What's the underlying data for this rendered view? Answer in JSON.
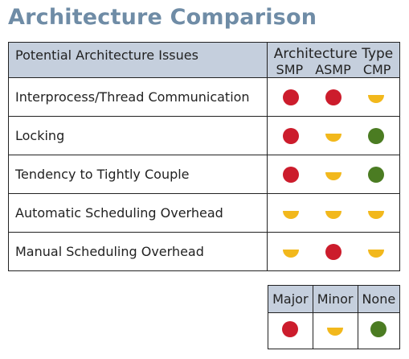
{
  "title": "Architecture Comparison",
  "colors": {
    "major": "#cc1c2c",
    "minor": "#f2b81c",
    "none": "#4b7c22",
    "header_bg": "#c5cfdd",
    "title": "#6f8ca6"
  },
  "table": {
    "issues_header": "Potential Architecture Issues",
    "type_header": "Architecture Type",
    "columns": [
      "SMP",
      "ASMP",
      "CMP"
    ],
    "rows": [
      {
        "issue": "Interprocess/Thread Communication",
        "ratings": [
          "Major",
          "Major",
          "Minor"
        ]
      },
      {
        "issue": "Locking",
        "ratings": [
          "Major",
          "Minor",
          "None"
        ]
      },
      {
        "issue": "Tendency to Tightly Couple",
        "ratings": [
          "Major",
          "Minor",
          "None"
        ]
      },
      {
        "issue": "Automatic Scheduling Overhead",
        "ratings": [
          "Minor",
          "Minor",
          "Minor"
        ]
      },
      {
        "issue": "Manual Scheduling Overhead",
        "ratings": [
          "Minor",
          "Major",
          "Minor"
        ]
      }
    ]
  },
  "legend": {
    "items": [
      {
        "label": "Major",
        "rating": "Major"
      },
      {
        "label": "Minor",
        "rating": "Minor"
      },
      {
        "label": "None",
        "rating": "None"
      }
    ]
  }
}
